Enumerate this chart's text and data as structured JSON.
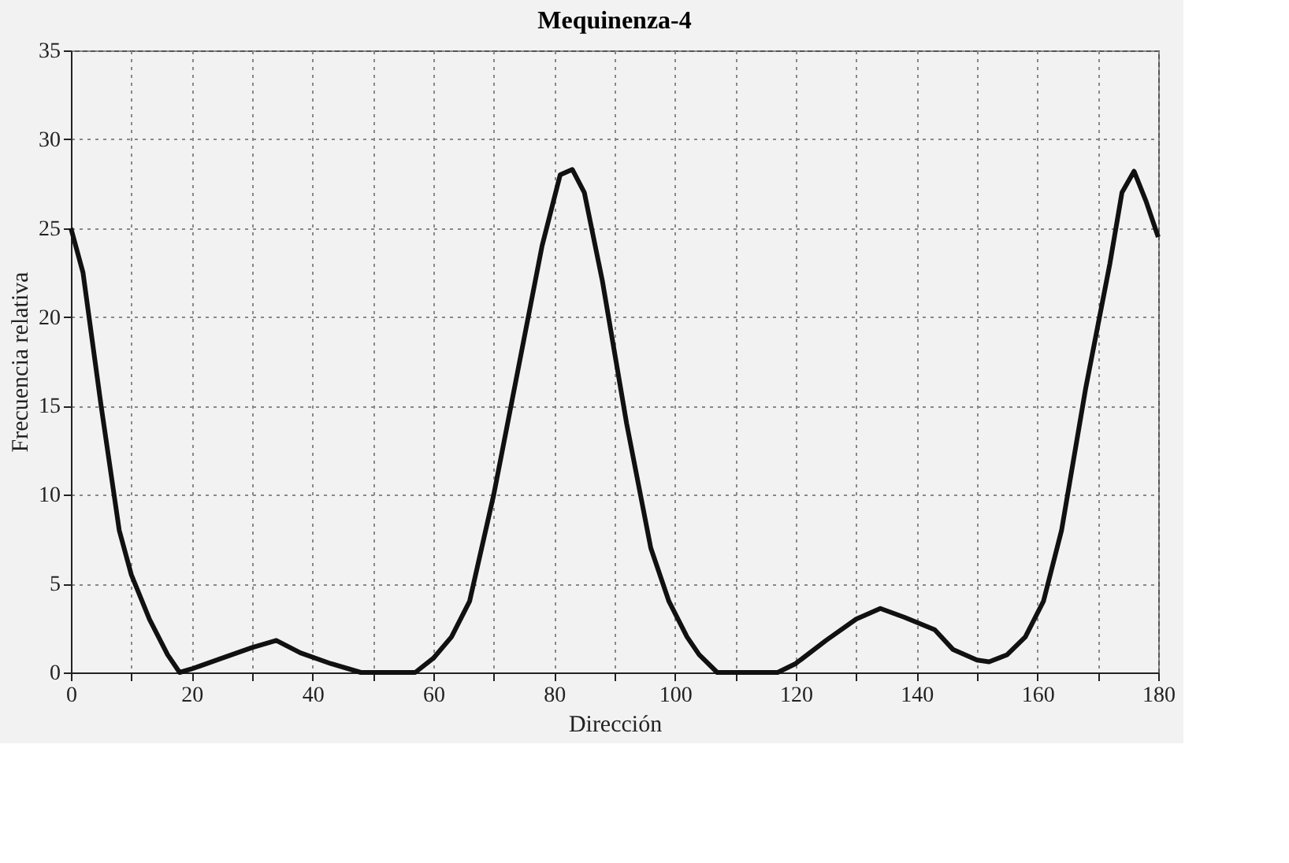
{
  "chart_data": {
    "type": "line",
    "title": "Mequinenza-4",
    "xlabel": "Dirección",
    "ylabel": "Frecuencia relativa",
    "x": [
      0,
      2,
      5,
      8,
      10,
      13,
      16,
      18,
      20,
      25,
      30,
      34,
      38,
      43,
      48,
      57,
      60,
      63,
      66,
      70,
      74,
      78,
      81,
      83,
      85,
      88,
      92,
      96,
      99,
      102,
      104,
      107,
      117,
      120,
      125,
      130,
      134,
      138,
      143,
      146,
      150,
      152,
      155,
      158,
      161,
      164,
      168,
      172,
      174,
      176,
      178,
      180
    ],
    "series": [
      {
        "color": "#111111",
        "values": [
          25,
          22.5,
          15,
          8,
          5.5,
          3,
          1,
          0,
          0.2,
          0.8,
          1.4,
          1.8,
          1.1,
          0.5,
          0,
          0,
          0.8,
          2,
          4,
          10,
          17,
          24,
          28,
          28.3,
          27,
          22,
          14,
          7,
          4,
          2,
          1,
          0,
          0,
          0.5,
          1.8,
          3,
          3.6,
          3.1,
          2.4,
          1.3,
          0.7,
          0.6,
          1,
          2,
          4,
          8,
          16,
          23,
          27,
          28.2,
          26.5,
          24.5
        ]
      }
    ],
    "xlim": [
      0,
      180
    ],
    "ylim": [
      0,
      35
    ],
    "xticks": [
      0,
      {
        "value": 10,
        "label": null
      },
      20,
      {
        "value": 30,
        "label": null
      },
      40,
      {
        "value": 50,
        "label": null
      },
      60,
      {
        "value": 70,
        "label": null
      },
      80,
      {
        "value": 90,
        "label": null
      },
      100,
      {
        "value": 110,
        "label": null
      },
      120,
      {
        "value": 130,
        "label": null
      },
      140,
      {
        "value": 150,
        "label": null
      },
      160,
      {
        "value": 170,
        "label": null
      },
      180
    ],
    "yticks": [
      0,
      5,
      10,
      15,
      20,
      25,
      30,
      35
    ],
    "grid": true,
    "marker": "none",
    "line_style": "solid"
  }
}
